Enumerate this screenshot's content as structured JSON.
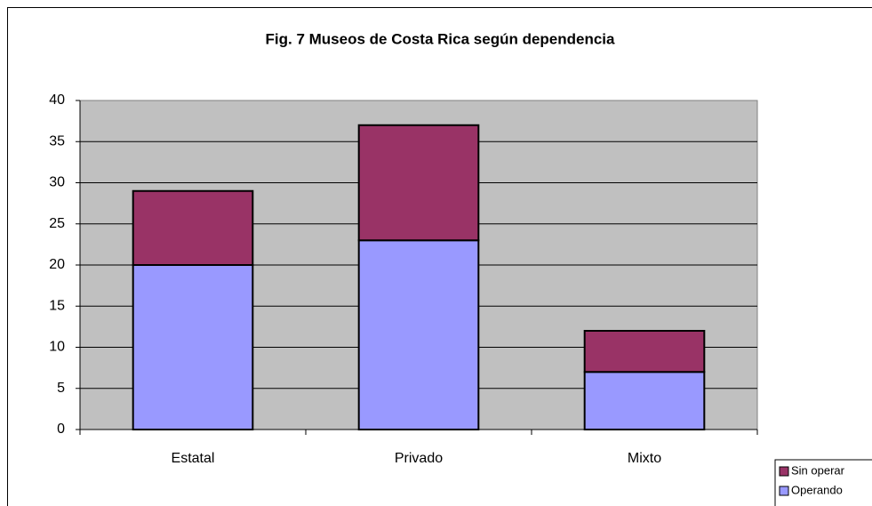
{
  "chart_data": {
    "type": "stacked_bar",
    "title": "Fig. 7 Museos de Costa Rica según dependencia",
    "categories": [
      "Estatal",
      "Privado",
      "Mixto"
    ],
    "series": [
      {
        "name": "Operando",
        "color": "#9999ff",
        "values": [
          20,
          23,
          7
        ]
      },
      {
        "name": "Sin operar",
        "color": "#993366",
        "values": [
          9,
          14,
          5
        ]
      }
    ],
    "ylim": [
      0,
      40
    ],
    "yticks": [
      0,
      5,
      10,
      15,
      20,
      25,
      30,
      35,
      40
    ],
    "grid": true,
    "legend_position": "bottom-right"
  }
}
